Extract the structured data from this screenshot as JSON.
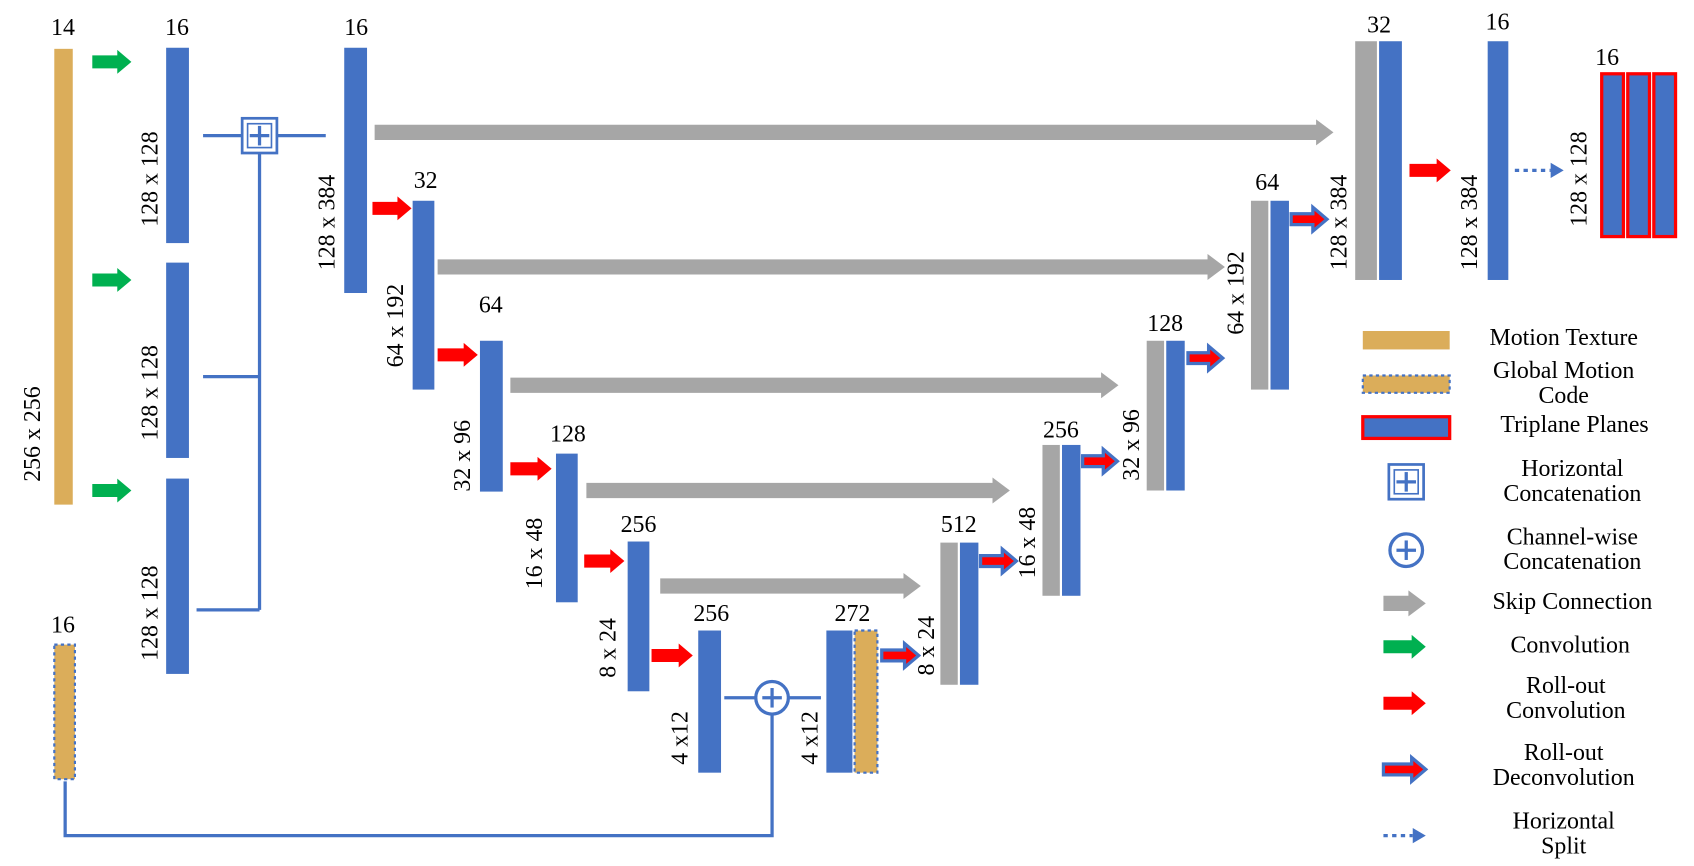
{
  "input": {
    "channels": "14",
    "size": "256 x 256"
  },
  "convolved": {
    "channels": "16",
    "sizes": [
      "128 x 128",
      "128 x 128",
      "128 x 128"
    ]
  },
  "global_code": {
    "channels": "16"
  },
  "encoder": [
    {
      "channels": "16",
      "size": "128 x 384"
    },
    {
      "channels": "32",
      "size": "64 x 192"
    },
    {
      "channels": "64",
      "size": "32 x 96"
    },
    {
      "channels": "128",
      "size": "16 x 48"
    },
    {
      "channels": "256",
      "size": "8 x 24"
    },
    {
      "channels": "256",
      "size": "4 x12"
    }
  ],
  "bottleneck": {
    "channels": "272",
    "size": "4 x12"
  },
  "decoder": [
    {
      "channels": "512",
      "size": "8 x 24"
    },
    {
      "channels": "256",
      "size": "16 x 48"
    },
    {
      "channels": "128",
      "size": "32 x 96"
    },
    {
      "channels": "64",
      "size": "64 x 192"
    },
    {
      "channels": "32",
      "size": "128 x 384"
    }
  ],
  "output": {
    "channels": "16",
    "size": "128 x 384"
  },
  "triplanes": {
    "channels": "16",
    "size": "128 x 128"
  },
  "legend": [
    {
      "lines": [
        "Motion Texture"
      ]
    },
    {
      "lines": [
        "Global Motion",
        "Code"
      ]
    },
    {
      "lines": [
        "Triplane Planes"
      ]
    },
    {
      "lines": [
        "Horizontal",
        "Concatenation"
      ]
    },
    {
      "lines": [
        "Channel-wise",
        "Concatenation"
      ]
    },
    {
      "lines": [
        "Skip Connection"
      ]
    },
    {
      "lines": [
        "Convolution"
      ]
    },
    {
      "lines": [
        "Roll-out",
        "Convolution"
      ]
    },
    {
      "lines": [
        "Roll-out",
        "Deconvolution"
      ]
    },
    {
      "lines": [
        "Horizontal",
        "Split"
      ]
    }
  ]
}
